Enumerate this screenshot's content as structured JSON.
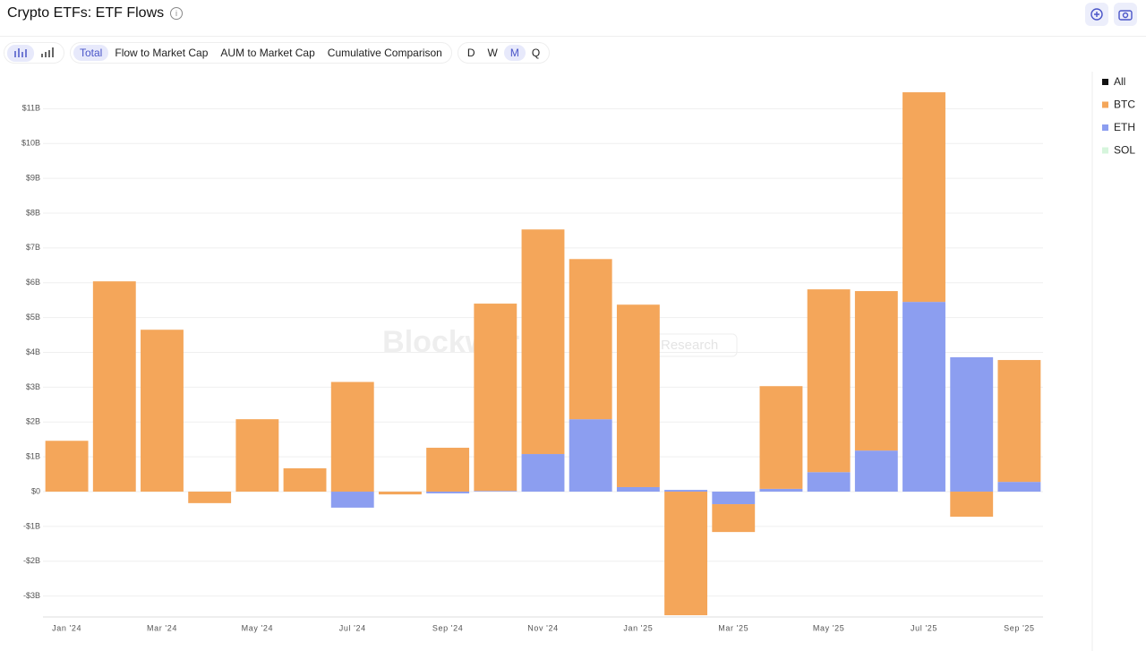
{
  "header": {
    "title": "Crypto ETFs: ETF Flows"
  },
  "toolbar": {
    "views": [
      {
        "label": "Total",
        "active": true
      },
      {
        "label": "Flow to Market Cap",
        "active": false
      },
      {
        "label": "AUM to Market Cap",
        "active": false
      },
      {
        "label": "Cumulative Comparison",
        "active": false
      }
    ],
    "periods": [
      {
        "label": "D",
        "active": false
      },
      {
        "label": "W",
        "active": false
      },
      {
        "label": "M",
        "active": true
      },
      {
        "label": "Q",
        "active": false
      }
    ]
  },
  "chart_data": {
    "type": "stacked-bar",
    "watermark": "Blockworks",
    "watermark_tag": "Research",
    "categories": [
      "Jan '24",
      null,
      "Mar '24",
      null,
      "May '24",
      null,
      "Jul '24",
      null,
      "Sep '24",
      null,
      "Nov '24",
      null,
      "Jan '25",
      null,
      "Mar '25",
      null,
      "May '25",
      null,
      "Jul '25",
      null,
      "Sep '25"
    ],
    "series": [
      {
        "name": "All",
        "color": "#111111"
      },
      {
        "name": "BTC",
        "color": "#f4a65a",
        "values": [
          1.46,
          6.04,
          4.65,
          -0.33,
          2.08,
          0.67,
          3.15,
          -0.08,
          1.26,
          5.38,
          6.45,
          4.6,
          5.24,
          -3.55,
          -0.8,
          2.95,
          5.25,
          4.58,
          6.02,
          -0.72,
          3.5
        ]
      },
      {
        "name": "ETH",
        "color": "#8c9ef0",
        "values": [
          0,
          0,
          0,
          0,
          0,
          0,
          -0.46,
          0,
          -0.05,
          0.02,
          1.08,
          2.08,
          0.13,
          0.05,
          -0.36,
          0.08,
          0.56,
          1.18,
          5.45,
          3.86,
          0.28
        ]
      },
      {
        "name": "SOL",
        "color": "#d6f5dc"
      }
    ],
    "stack_order": [
      "ETH",
      "BTC"
    ],
    "ylim": [
      -3.6,
      11.6
    ],
    "yticks": [
      {
        "value": -3,
        "label": "-$3B"
      },
      {
        "value": -2,
        "label": "-$2B"
      },
      {
        "value": -1,
        "label": "-$1B"
      },
      {
        "value": 0,
        "label": "$0"
      },
      {
        "value": 1,
        "label": "$1B"
      },
      {
        "value": 2,
        "label": "$2B"
      },
      {
        "value": 3,
        "label": "$3B"
      },
      {
        "value": 4,
        "label": "$4B"
      },
      {
        "value": 5,
        "label": "$5B"
      },
      {
        "value": 6,
        "label": "$6B"
      },
      {
        "value": 7,
        "label": "$7B"
      },
      {
        "value": 8,
        "label": "$8B"
      },
      {
        "value": 9,
        "label": "$9B"
      },
      {
        "value": 10,
        "label": "$10B"
      },
      {
        "value": 11,
        "label": "$11B"
      }
    ],
    "grid": true,
    "legend": "right"
  }
}
